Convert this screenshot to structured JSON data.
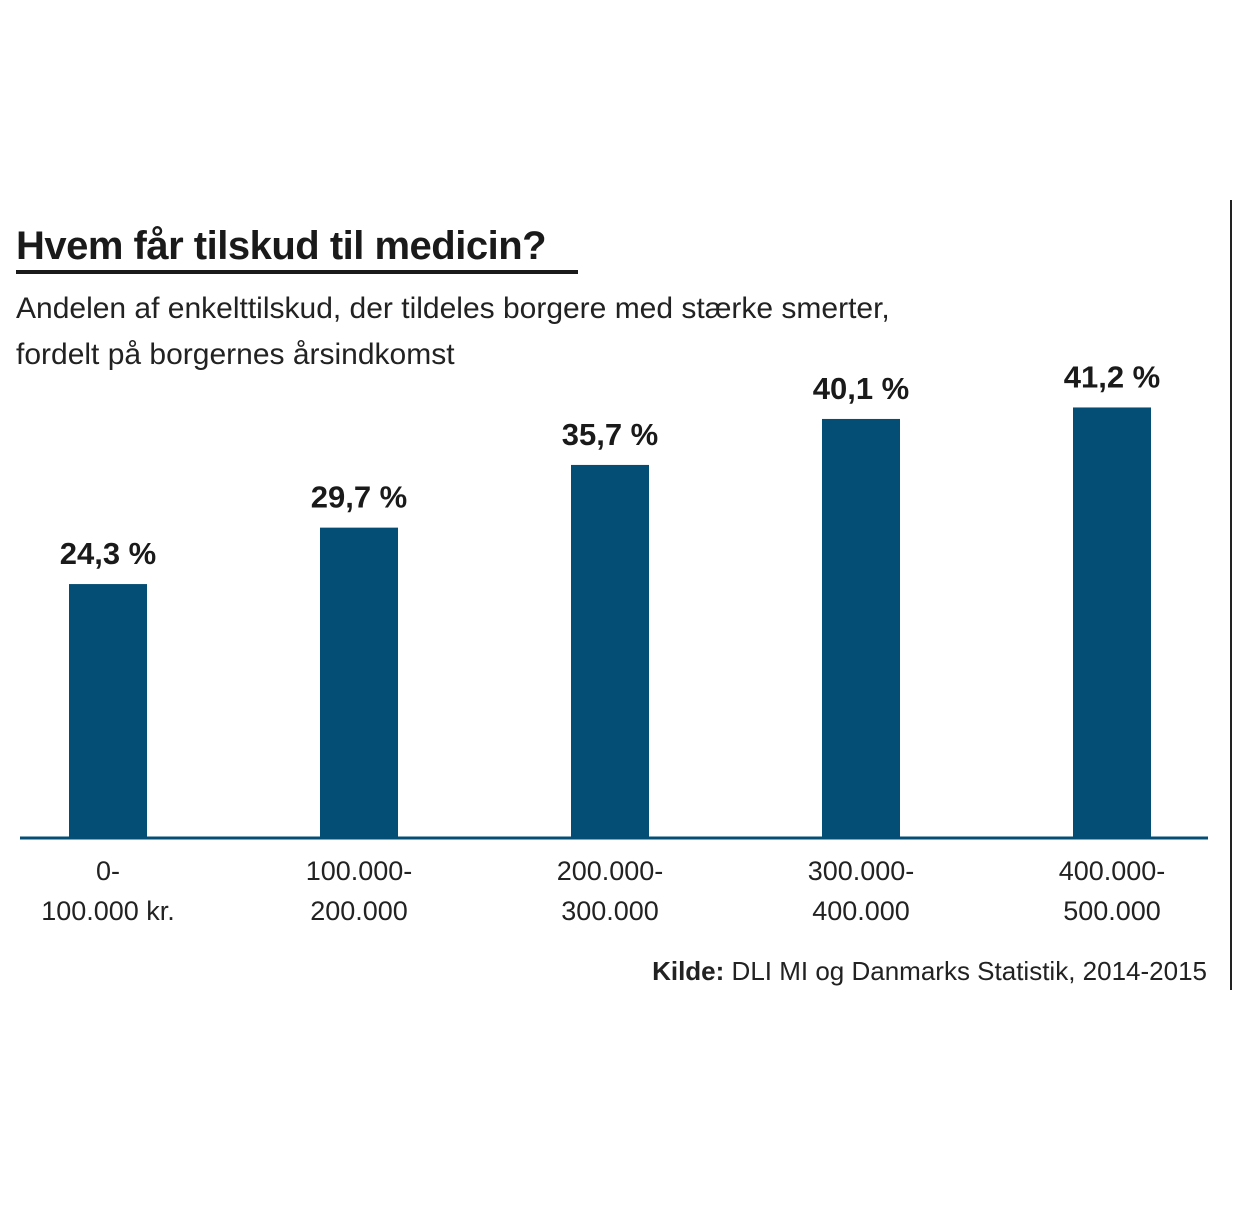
{
  "header": {
    "title": "Hvem får tilskud til medicin?",
    "subtitle_line1": "Andelen af enkelttilskud, der tildeles borgere med stærke smerter,",
    "subtitle_line2": "fordelt på borgernes årsindkomst"
  },
  "footer": {
    "source_label": "Kilde:",
    "source_text": "DLI MI og Danmarks Statistik, 2014-2015"
  },
  "colors": {
    "bar": "#044d74",
    "axis": "#044d74",
    "text": "#1a1a1a"
  },
  "chart_data": {
    "type": "bar",
    "title": "Hvem får tilskud til medicin?",
    "subtitle": "Andelen af enkelttilskud, der tildeles borgere med stærke smerter, fordelt på borgernes årsindkomst",
    "categories": [
      [
        "0-",
        "100.000 kr."
      ],
      [
        "100.000-",
        "200.000"
      ],
      [
        "200.000-",
        "300.000"
      ],
      [
        "300.000-",
        "400.000"
      ],
      [
        "400.000-",
        "500.000"
      ]
    ],
    "values": [
      24.3,
      29.7,
      35.7,
      40.1,
      41.2
    ],
    "data_labels": [
      "24,3 %",
      "29,7 %",
      "35,7 %",
      "40,1 %",
      "41,2 %"
    ],
    "xlabel": "",
    "ylabel": "",
    "ylim": [
      0,
      100
    ],
    "grid": false,
    "legend": "none"
  }
}
